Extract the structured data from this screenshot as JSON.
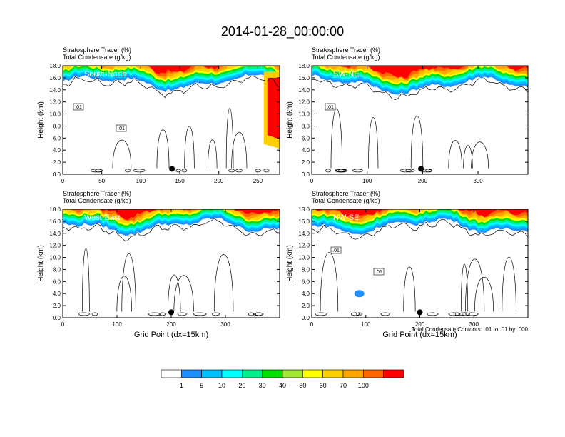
{
  "chart_data": {
    "type": "heatmap",
    "title": "2014-01-28_00:00:00",
    "panel_header": {
      "line1": "Stratosphere Tracer   (%)",
      "line2": "Total Condensate   (g/kg)"
    },
    "ylabel": "Height (km)",
    "xlabel": "Grid Point (dx=15km)",
    "ylim": [
      0,
      18
    ],
    "y_ticks": [
      "0.0",
      "2.0",
      "4.0",
      "6.0",
      "8.0",
      "10.0",
      "12.0",
      "14.0",
      "16.0",
      "18.0"
    ],
    "panels": [
      {
        "label": "South-North",
        "xlim": [
          0,
          278
        ],
        "x_ticks": [
          0,
          50,
          100,
          150,
          200,
          250
        ],
        "contour_labels": [
          ".01",
          ".01"
        ],
        "marker_x": 140,
        "show_xlabel": false
      },
      {
        "label": "SW-NE",
        "xlim": [
          0,
          390
        ],
        "x_ticks": [
          0,
          100,
          200,
          300
        ],
        "contour_labels": [
          ".01"
        ],
        "marker_x": 197,
        "show_xlabel": false
      },
      {
        "label": "West-East",
        "xlim": [
          0,
          400
        ],
        "x_ticks": [
          0,
          100,
          200,
          300
        ],
        "contour_labels": [],
        "marker_x": 200,
        "show_xlabel": true
      },
      {
        "label": "NW-SE",
        "xlim": [
          0,
          400
        ],
        "x_ticks": [
          0,
          100,
          200,
          300
        ],
        "contour_labels": [
          ".01",
          ".01"
        ],
        "marker_x": 200,
        "show_xlabel": true
      }
    ],
    "contour_note": "Total Condensate Contours: .01 to .01 by .000",
    "colorbar": {
      "levels": [
        "1",
        "5",
        "10",
        "20",
        "30",
        "40",
        "50",
        "60",
        "70",
        "100"
      ],
      "colors": [
        "#ffffff",
        "#1e90ff",
        "#00bfff",
        "#00ffff",
        "#00f08c",
        "#00e000",
        "#a0e632",
        "#ffff00",
        "#ffd000",
        "#ffa500",
        "#ff6600",
        "#ff0000"
      ]
    }
  }
}
